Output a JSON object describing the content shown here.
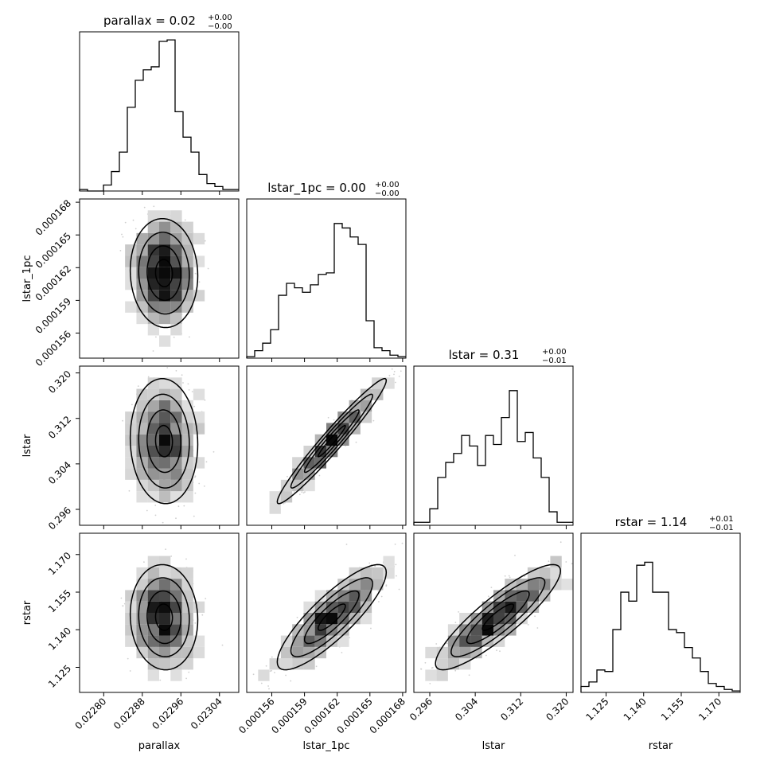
{
  "chart_data": {
    "type": "corner",
    "params": [
      "parallax",
      "lstar_1pc",
      "lstar",
      "rstar"
    ],
    "titles": [
      {
        "label": "parallax = 0.02",
        "sup": "+0.00",
        "sub": "−0.00"
      },
      {
        "label": "lstar_1pc = 0.00",
        "sup": "+0.00",
        "sub": "−0.00"
      },
      {
        "label": "lstar = 0.31",
        "sup": "+0.00",
        "sub": "−0.01"
      },
      {
        "label": "rstar = 1.14",
        "sup": "+0.01",
        "sub": "−0.01"
      }
    ],
    "axes": [
      {
        "range": [
          0.02275,
          0.02308
        ],
        "ticks": [
          0.0228,
          0.02288,
          0.02296,
          0.02304
        ],
        "tick_labels": [
          "0.02280",
          "0.02288",
          "0.02296",
          "0.02304"
        ]
      },
      {
        "range": [
          0.0001537,
          0.0001683
        ],
        "ticks": [
          0.000156,
          0.000159,
          0.000162,
          0.000165,
          0.000168
        ],
        "tick_labels": [
          "0.000156",
          "0.000159",
          "0.000162",
          "0.000165",
          "0.000168"
        ]
      },
      {
        "range": [
          0.2932,
          0.3212
        ],
        "ticks": [
          0.296,
          0.304,
          0.312,
          0.32
        ],
        "tick_labels": [
          "0.296",
          "0.304",
          "0.312",
          "0.320"
        ]
      },
      {
        "range": [
          1.115,
          1.1785
        ],
        "ticks": [
          1.125,
          1.14,
          1.155,
          1.17
        ],
        "tick_labels": [
          "1.125",
          "1.140",
          "1.155",
          "1.170"
        ]
      }
    ],
    "hist": [
      [
        0.01,
        0.0,
        0.0,
        0.04,
        0.13,
        0.26,
        0.56,
        0.74,
        0.81,
        0.83,
        1.0,
        1.01,
        0.53,
        0.36,
        0.26,
        0.11,
        0.05,
        0.03,
        0.01,
        0.01
      ],
      [
        0.01,
        0.05,
        0.1,
        0.19,
        0.42,
        0.5,
        0.47,
        0.44,
        0.49,
        0.56,
        0.57,
        0.9,
        0.87,
        0.81,
        0.76,
        0.25,
        0.07,
        0.05,
        0.02,
        0.01
      ],
      [
        0.02,
        0.02,
        0.11,
        0.32,
        0.42,
        0.48,
        0.6,
        0.53,
        0.4,
        0.6,
        0.54,
        0.72,
        0.9,
        0.56,
        0.62,
        0.45,
        0.32,
        0.09,
        0.02,
        0.02
      ],
      [
        0.04,
        0.07,
        0.15,
        0.14,
        0.42,
        0.67,
        0.61,
        0.85,
        0.87,
        0.67,
        0.67,
        0.42,
        0.4,
        0.3,
        0.23,
        0.14,
        0.06,
        0.04,
        0.02,
        0.01
      ]
    ],
    "correlations": [
      [
        1.0,
        -0.05,
        -0.05,
        -0.05
      ],
      [
        -0.05,
        1.0,
        0.97,
        0.85
      ],
      [
        -0.05,
        0.97,
        1.0,
        0.88
      ],
      [
        -0.05,
        0.85,
        0.88,
        1.0
      ]
    ],
    "centers": [
      0.022925,
      0.0001615,
      0.308,
      1.145
    ],
    "spreads": [
      3.5e-05,
      2.5e-06,
      0.0055,
      0.0105
    ],
    "plot_style": {
      "hist_color": "#000000",
      "contour_color": "#000000",
      "density_cmap": "greys"
    }
  }
}
